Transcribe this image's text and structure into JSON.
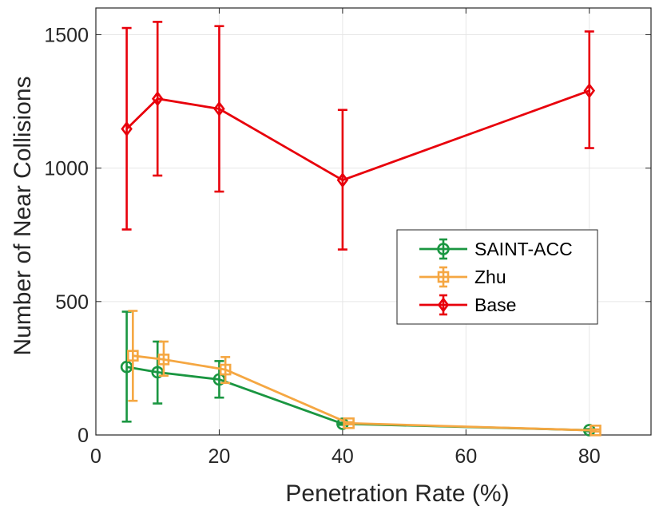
{
  "chart_data": {
    "type": "line",
    "title": "",
    "xlabel": "Penetration Rate (%)",
    "ylabel": "Number of Near Collisions",
    "xlim": [
      0,
      90
    ],
    "ylim": [
      0,
      1600
    ],
    "x_ticks": [
      0,
      20,
      40,
      60,
      80
    ],
    "x_tick_labels": [
      "0",
      "20",
      "40",
      "60",
      "80"
    ],
    "y_ticks": [
      0,
      500,
      1000,
      1500
    ],
    "y_tick_labels": [
      "0",
      "500",
      "1000",
      "1500"
    ],
    "grid": true,
    "legend_position": "center-right",
    "series": [
      {
        "name": "SAINT-ACC",
        "color": "#1a9641",
        "marker": "circle",
        "x": [
          5,
          10,
          20,
          40,
          80
        ],
        "values": [
          255,
          235,
          208,
          42,
          18
        ],
        "err_low": [
          50,
          118,
          140,
          38,
          14
        ],
        "err_high": [
          462,
          350,
          277,
          46,
          22
        ]
      },
      {
        "name": "Zhu",
        "color": "#f5a742",
        "marker": "square",
        "x": [
          6,
          11,
          21,
          41,
          81
        ],
        "values": [
          297,
          283,
          245,
          44,
          17
        ],
        "err_low": [
          128,
          222,
          195,
          40,
          13
        ],
        "err_high": [
          465,
          350,
          292,
          48,
          21
        ]
      },
      {
        "name": "Base",
        "color": "#e8000b",
        "marker": "diamond",
        "x": [
          5,
          10,
          20,
          40,
          80
        ],
        "values": [
          1147,
          1260,
          1222,
          955,
          1290
        ],
        "err_low": [
          770,
          972,
          912,
          695,
          1075
        ],
        "err_high": [
          1525,
          1548,
          1532,
          1218,
          1512
        ]
      }
    ]
  }
}
